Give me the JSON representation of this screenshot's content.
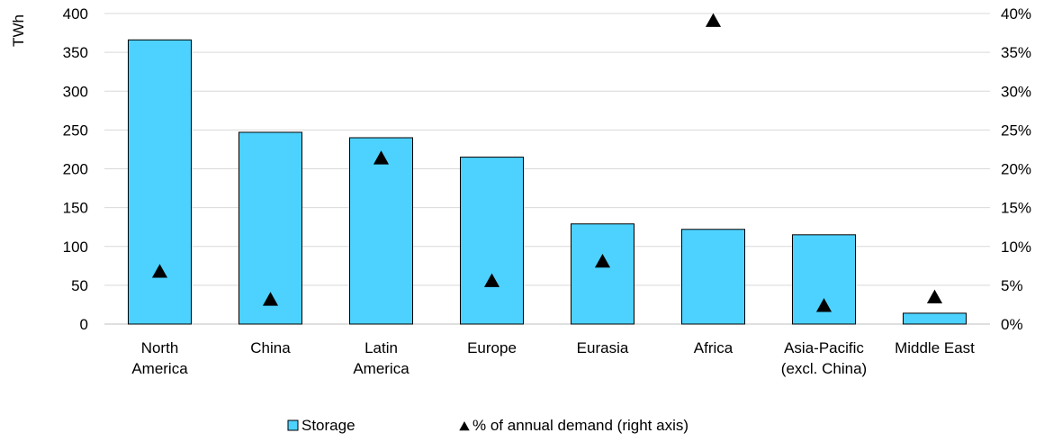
{
  "chart_data": {
    "type": "bar",
    "categories": [
      [
        "North",
        "America"
      ],
      [
        "China"
      ],
      [
        "Latin",
        "America"
      ],
      [
        "Europe"
      ],
      [
        "Eurasia"
      ],
      [
        "Africa"
      ],
      [
        "Asia-Pacific",
        "(excl. China)"
      ],
      [
        "Middle East"
      ]
    ],
    "series": [
      {
        "name": "Storage",
        "kind": "bar",
        "axis": "left",
        "color": "#4dd2ff",
        "values": [
          366,
          247,
          240,
          215,
          129,
          122,
          115,
          14
        ]
      },
      {
        "name": "% of annual demand (right axis)",
        "kind": "marker",
        "marker": "triangle",
        "axis": "right",
        "color": "#000000",
        "values": [
          6.7,
          3.1,
          21.3,
          5.5,
          8.0,
          39.0,
          2.3,
          3.4
        ]
      }
    ],
    "ylabel": "TWh",
    "ylim": [
      0,
      400
    ],
    "yticks": [
      "0",
      "50",
      "100",
      "150",
      "200",
      "250",
      "300",
      "350",
      "400"
    ],
    "y2lim": [
      0,
      40
    ],
    "y2ticks": [
      "0%",
      "5%",
      "10%",
      "15%",
      "20%",
      "25%",
      "30%",
      "35%",
      "40%"
    ],
    "grid": true,
    "legend_position": "bottom"
  }
}
